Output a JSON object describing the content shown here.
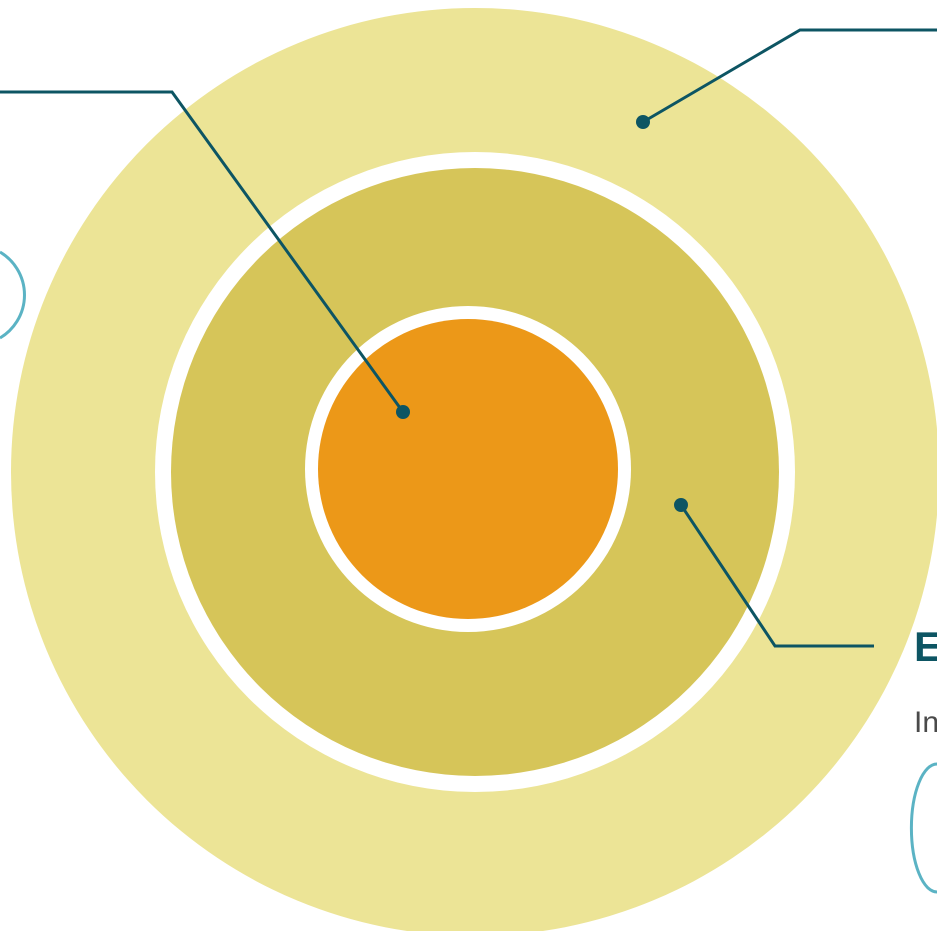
{
  "diagram": {
    "colors": {
      "outer_ring": "#ece496",
      "middle_ring": "#d6c559",
      "core": "#ec9818",
      "separator": "#ffffff",
      "connector": "#0d5563",
      "outline_accent": "#5bb3c4"
    },
    "labels": {
      "right_title_fragment": "E",
      "right_text_fragment": "In"
    }
  }
}
